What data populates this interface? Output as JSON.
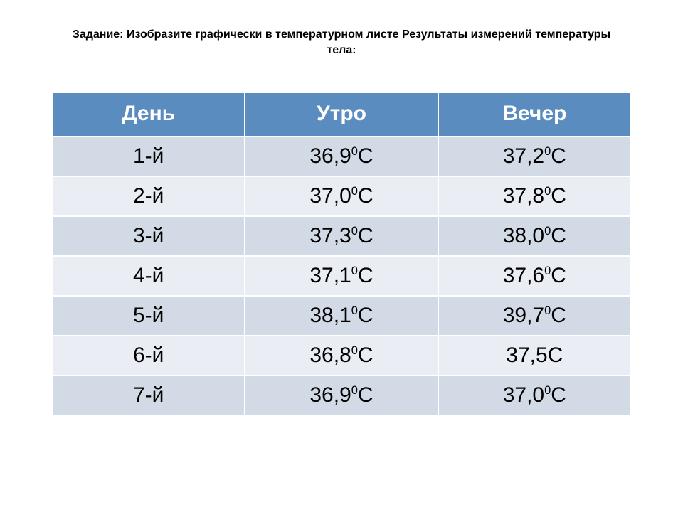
{
  "title": "Задание: Изобразите графически в температурном листе Результаты измерений температуры тела:",
  "table": {
    "columns": [
      "День",
      "Утро",
      "Вечер"
    ],
    "rows": [
      {
        "day": "1-й",
        "morning": {
          "v": "36,9",
          "sup": "0",
          "unit": "С"
        },
        "evening": {
          "v": "37,2",
          "sup": "0",
          "unit": "С"
        }
      },
      {
        "day": "2-й",
        "morning": {
          "v": "37,0",
          "sup": "0",
          "unit": "С"
        },
        "evening": {
          "v": "37,8",
          "sup": "0",
          "unit": "С"
        }
      },
      {
        "day": "3-й",
        "morning": {
          "v": "37,3",
          "sup": "0",
          "unit": "С"
        },
        "evening": {
          "v": "38,0",
          "sup": "0",
          "unit": "С"
        }
      },
      {
        "day": "4-й",
        "morning": {
          "v": "37,1",
          "sup": "0",
          "unit": "С"
        },
        "evening": {
          "v": "37,6",
          "sup": "0",
          "unit": "С"
        }
      },
      {
        "day": "5-й",
        "morning": {
          "v": "38,1",
          "sup": "0",
          "unit": "С"
        },
        "evening": {
          "v": "39,7",
          "sup": "0",
          "unit": "С"
        }
      },
      {
        "day": "6-й",
        "morning": {
          "v": "36,8",
          "sup": "0",
          "unit": "С"
        },
        "evening": {
          "v": "37,5",
          "sup": "",
          "unit": "С"
        }
      },
      {
        "day": "7-й",
        "morning": {
          "v": "36,9",
          "sup": "0",
          "unit": "С"
        },
        "evening": {
          "v": "37,0",
          "sup": "0",
          "unit": "С"
        }
      }
    ],
    "header_bg": "#5a8cc0",
    "header_fg": "#ffffff",
    "row_odd_bg": "#d2dbe5",
    "row_even_bg": "#eaeef4",
    "cell_border": "#ffffff",
    "font_size_header": 30,
    "font_size_cell": 30
  }
}
